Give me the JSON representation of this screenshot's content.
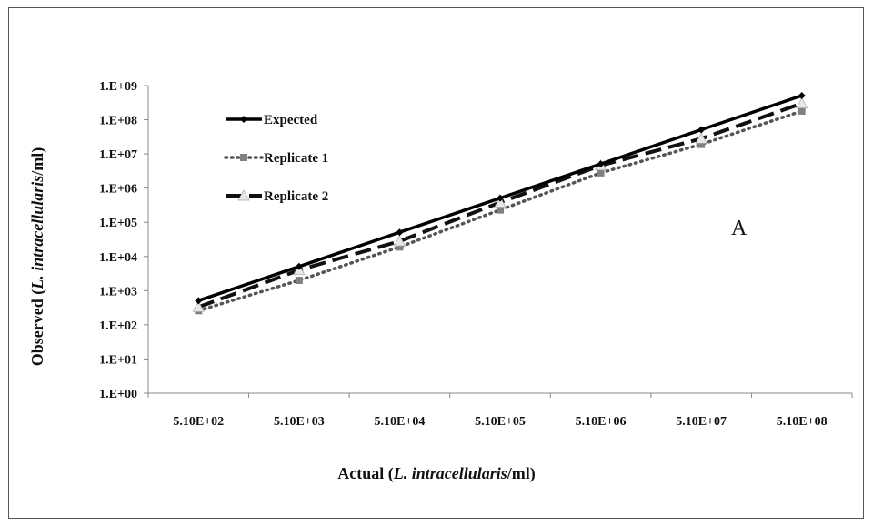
{
  "chart_data": {
    "type": "line",
    "title": "",
    "xlabel": {
      "prefix": "Actual (",
      "italic": "L. intracellularis",
      "suffix": "/ml)"
    },
    "ylabel": {
      "prefix": "Observed (",
      "italic": "L. intracellularis",
      "suffix": "/ml)"
    },
    "y_scale": "log",
    "ylim": [
      1,
      1000000000
    ],
    "y_ticks": [
      "1.E+00",
      "1.E+01",
      "1.E+02",
      "1.E+03",
      "1.E+04",
      "1.E+05",
      "1.E+06",
      "1.E+07",
      "1.E+08",
      "1.E+09"
    ],
    "categories": [
      "5.10E+02",
      "5.10E+03",
      "5.10E+04",
      "5.10E+05",
      "5.10E+06",
      "5.10E+07",
      "5.10E+08"
    ],
    "grid": false,
    "legend_position": "top-left",
    "series": [
      {
        "name": "Expected",
        "color": "#000000",
        "style": "solid",
        "marker": "diamond",
        "values": [
          510,
          5100,
          51000,
          510000,
          5100000,
          51000000,
          510000000
        ]
      },
      {
        "name": "Replicate 1",
        "color": "#555555",
        "style": "dotted",
        "marker": "square",
        "values": [
          260,
          2000,
          19000,
          230000,
          2800000,
          19000000,
          180000000
        ]
      },
      {
        "name": "Replicate 2",
        "color": "#111111",
        "style": "dashed",
        "marker": "triangle",
        "values": [
          330,
          4000,
          28000,
          380000,
          4600000,
          28000000,
          300000000
        ]
      }
    ],
    "annotation": "A"
  }
}
